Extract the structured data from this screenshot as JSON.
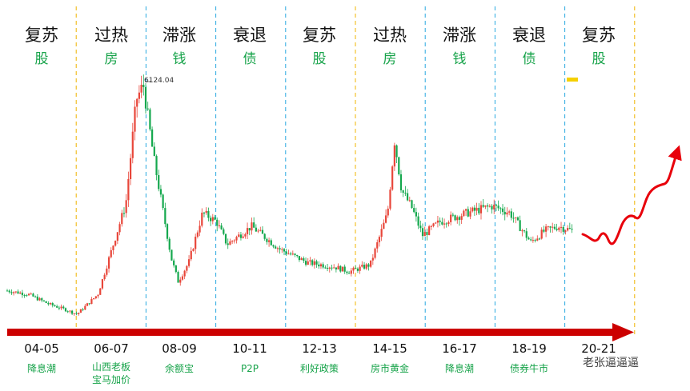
{
  "chart_data": {
    "type": "candlestick",
    "title": "",
    "peak_label": "6124.04",
    "colors": {
      "up": "#e8463a",
      "down": "#15a84e",
      "arrow": "#cc0000",
      "phase_divider": "#29a9e0",
      "cycle_divider": "#f0b400",
      "text_green": "#17a34a"
    },
    "phases": [
      {
        "name": "复苏",
        "asset": "股"
      },
      {
        "name": "过热",
        "asset": "房"
      },
      {
        "name": "滞涨",
        "asset": "钱"
      },
      {
        "name": "衰退",
        "asset": "债"
      },
      {
        "name": "复苏",
        "asset": "股"
      },
      {
        "name": "过热",
        "asset": "房"
      },
      {
        "name": "滞涨",
        "asset": "钱"
      },
      {
        "name": "衰退",
        "asset": "债"
      },
      {
        "name": "复苏",
        "asset": "股"
      }
    ],
    "periods": [
      {
        "years": "04-05",
        "event": "降息潮"
      },
      {
        "years": "06-07",
        "event": "山西老板\n宝马加价"
      },
      {
        "years": "08-09",
        "event": "余额宝"
      },
      {
        "years": "10-11",
        "event": "P2P"
      },
      {
        "years": "12-13",
        "event": "利好政策"
      },
      {
        "years": "14-15",
        "event": "房市黄金"
      },
      {
        "years": "16-17",
        "event": "降息潮"
      },
      {
        "years": "18-19",
        "event": "债券牛市"
      },
      {
        "years": "20-21",
        "event": ""
      }
    ],
    "price_path": [
      [
        0,
        1580
      ],
      [
        0.3,
        1500
      ],
      [
        0.6,
        1280
      ],
      [
        0.8,
        1180
      ],
      [
        1.0,
        1060
      ],
      [
        1.3,
        1500
      ],
      [
        1.5,
        2500
      ],
      [
        1.7,
        3500
      ],
      [
        1.85,
        5800
      ],
      [
        1.95,
        6124
      ],
      [
        2.1,
        4500
      ],
      [
        2.35,
        2300
      ],
      [
        2.45,
        1780
      ],
      [
        2.6,
        2200
      ],
      [
        2.8,
        3300
      ],
      [
        3.0,
        3100
      ],
      [
        3.15,
        2600
      ],
      [
        3.5,
        3000
      ],
      [
        3.9,
        2500
      ],
      [
        4.3,
        2200
      ],
      [
        4.7,
        2100
      ],
      [
        4.9,
        2000
      ],
      [
        5.2,
        2150
      ],
      [
        5.45,
        3300
      ],
      [
        5.55,
        4900
      ],
      [
        5.65,
        3800
      ],
      [
        5.8,
        3400
      ],
      [
        5.95,
        2800
      ],
      [
        6.2,
        3100
      ],
      [
        6.6,
        3300
      ],
      [
        6.95,
        3450
      ],
      [
        7.2,
        3300
      ],
      [
        7.5,
        2650
      ],
      [
        7.7,
        2900
      ],
      [
        7.9,
        3000
      ],
      [
        8.1,
        2900
      ]
    ],
    "projection": "up",
    "watermark": "老张逼逼逼"
  }
}
